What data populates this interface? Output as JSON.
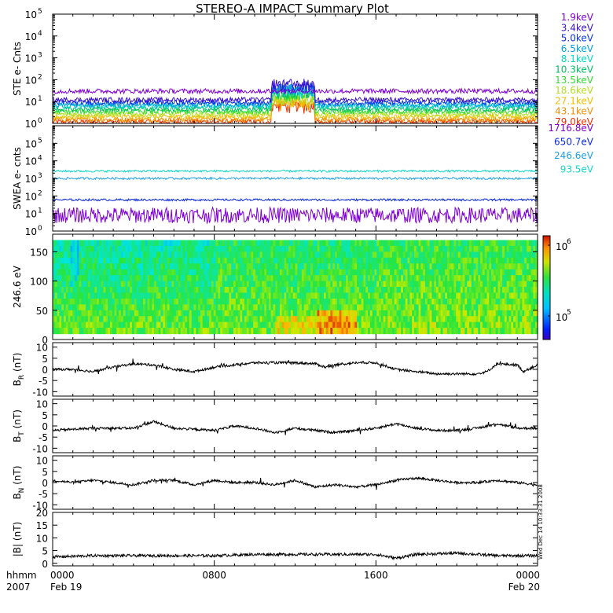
{
  "chart_data": {
    "title": "STEREO-A IMPACT Summary Plot",
    "x_axis": {
      "corner_labels": [
        "hhmm",
        "2007"
      ],
      "ticks": [
        {
          "time": "0000",
          "date": "Feb 19",
          "hour": 0
        },
        {
          "time": "0800",
          "date": "",
          "hour": 8
        },
        {
          "time": "1600",
          "date": "",
          "hour": 16
        },
        {
          "time": "0000",
          "date": "Feb 20",
          "hour": 24
        }
      ],
      "range_hours": [
        0,
        24
      ]
    },
    "side_stamp": "Wed Dec 14 10:33:31 2008",
    "panels": [
      {
        "id": "ste",
        "type": "line",
        "scale": "log",
        "ylabel": "STE e- Cnts",
        "ylim_exp": [
          0,
          5
        ],
        "tick_labels": [
          "10",
          "10",
          "10",
          "10",
          "10",
          "10"
        ],
        "tick_exps": [
          "0",
          "1",
          "2",
          "3",
          "4",
          "5"
        ],
        "series": [
          {
            "name": "1.9keV",
            "color": "#7f00d4",
            "level": 30
          },
          {
            "name": "3.4keV",
            "color": "#3c10c8",
            "level": 12
          },
          {
            "name": "5.0keV",
            "color": "#0a34e6",
            "level": 9
          },
          {
            "name": "6.5keV",
            "color": "#00a0e0",
            "level": 7
          },
          {
            "name": "8.1keV",
            "color": "#00d8c0",
            "level": 6
          },
          {
            "name": "10.3keV",
            "color": "#00c060",
            "level": 4.5
          },
          {
            "name": "13.5keV",
            "color": "#30dc30",
            "level": 3.5
          },
          {
            "name": "18.6keV",
            "color": "#b0e020",
            "level": 2.6
          },
          {
            "name": "27.1keV",
            "color": "#f0c000",
            "level": 2
          },
          {
            "name": "43.1keV",
            "color": "#f09000",
            "level": 1.5
          },
          {
            "name": "79.0keV",
            "color": "#f03000",
            "level": 1.2
          }
        ],
        "burst_hours": [
          10.8,
          13.0
        ]
      },
      {
        "id": "swea",
        "type": "line",
        "scale": "log",
        "ylabel": "SWEA e- cnts",
        "ylim_exp": [
          0,
          6
        ],
        "tick_labels": [
          "10",
          "10",
          "10",
          "10",
          "10",
          "10"
        ],
        "tick_exps": [
          "0",
          "1",
          "2",
          "3",
          "4",
          "5"
        ],
        "series": [
          {
            "name": "1716.8eV",
            "color": "#7f00d4",
            "level": 8
          },
          {
            "name": "650.7eV",
            "color": "#0a28e0",
            "level": 60
          },
          {
            "name": "246.6eV",
            "color": "#1ea0e8",
            "level": 1000
          },
          {
            "name": "93.5eV",
            "color": "#10d8c8",
            "level": 2600
          }
        ]
      },
      {
        "id": "pad",
        "type": "heatmap",
        "ylabel": "246.6 eV",
        "ylim": [
          0,
          180
        ],
        "yticks": [
          0,
          50,
          100,
          150
        ],
        "colorbar": {
          "labels": [
            "10",
            "10"
          ],
          "exps": [
            "6",
            "5"
          ],
          "scale": "log"
        }
      },
      {
        "id": "br",
        "type": "line",
        "ylabel": "B",
        "ylabel_sub": "R",
        "ylabel_unit": " (nT)",
        "ylim": [
          -12,
          12
        ],
        "yticks": [
          -10,
          -5,
          0,
          5,
          10
        ],
        "keypoints": [
          [
            0,
            0
          ],
          [
            1,
            0
          ],
          [
            2,
            -1
          ],
          [
            3,
            1
          ],
          [
            4,
            2.5
          ],
          [
            5,
            2
          ],
          [
            6,
            0
          ],
          [
            7,
            -1
          ],
          [
            8,
            1
          ],
          [
            9,
            2
          ],
          [
            10,
            3
          ],
          [
            11,
            3
          ],
          [
            12,
            3
          ],
          [
            13,
            2.5
          ],
          [
            13.5,
            1
          ],
          [
            14,
            2
          ],
          [
            15,
            3
          ],
          [
            16,
            3
          ],
          [
            17,
            0
          ],
          [
            18,
            -1
          ],
          [
            19,
            -2
          ],
          [
            20,
            -2
          ],
          [
            21,
            -2
          ],
          [
            21.5,
            -1
          ],
          [
            22,
            2.5
          ],
          [
            23,
            2
          ],
          [
            23.3,
            -1
          ],
          [
            24,
            2
          ]
        ]
      },
      {
        "id": "bt",
        "type": "line",
        "ylabel": "B",
        "ylabel_sub": "T",
        "ylabel_unit": " (nT)",
        "ylim": [
          -12,
          12
        ],
        "yticks": [
          -10,
          -5,
          0,
          5,
          10
        ],
        "keypoints": [
          [
            0,
            -2
          ],
          [
            2,
            -1
          ],
          [
            4,
            -1
          ],
          [
            5,
            2
          ],
          [
            6,
            -1
          ],
          [
            8,
            -2
          ],
          [
            9,
            0
          ],
          [
            10,
            -1
          ],
          [
            11,
            -3
          ],
          [
            12,
            -1
          ],
          [
            13,
            -2
          ],
          [
            14,
            -3
          ],
          [
            15,
            -2
          ],
          [
            16,
            -1
          ],
          [
            17,
            1
          ],
          [
            18,
            -1
          ],
          [
            19,
            -2
          ],
          [
            20,
            -2
          ],
          [
            21,
            -1
          ],
          [
            22,
            1
          ],
          [
            23,
            -1
          ],
          [
            24,
            -1
          ]
        ]
      },
      {
        "id": "bn",
        "type": "line",
        "ylabel": "B",
        "ylabel_sub": "N",
        "ylabel_unit": " (nT)",
        "ylim": [
          -12,
          12
        ],
        "yticks": [
          -10,
          -5,
          0,
          5,
          10
        ],
        "keypoints": [
          [
            0,
            1
          ],
          [
            1,
            0
          ],
          [
            2,
            1
          ],
          [
            3,
            0
          ],
          [
            4,
            -1
          ],
          [
            5,
            1
          ],
          [
            6,
            1
          ],
          [
            7,
            -1
          ],
          [
            8,
            1
          ],
          [
            9,
            0
          ],
          [
            10,
            0
          ],
          [
            11,
            -1
          ],
          [
            12,
            1
          ],
          [
            13,
            -2
          ],
          [
            14,
            -1
          ],
          [
            15,
            -2
          ],
          [
            16,
            -1
          ],
          [
            17,
            1
          ],
          [
            18,
            2
          ],
          [
            19,
            1
          ],
          [
            20,
            0
          ],
          [
            21,
            0
          ],
          [
            22,
            1
          ],
          [
            23,
            0
          ],
          [
            24,
            -1
          ]
        ]
      },
      {
        "id": "bmag",
        "type": "line",
        "ylabel": "|B| (nT)",
        "ylim": [
          -1,
          20
        ],
        "yticks": [
          0,
          5,
          10,
          15,
          20
        ],
        "keypoints": [
          [
            0,
            2.5
          ],
          [
            2,
            3
          ],
          [
            4,
            3
          ],
          [
            6,
            3
          ],
          [
            8,
            3
          ],
          [
            10,
            3.5
          ],
          [
            12,
            3.5
          ],
          [
            14,
            3.5
          ],
          [
            16,
            3.5
          ],
          [
            17,
            2
          ],
          [
            18,
            3.5
          ],
          [
            20,
            4
          ],
          [
            22,
            3
          ],
          [
            24,
            3
          ]
        ]
      }
    ]
  }
}
